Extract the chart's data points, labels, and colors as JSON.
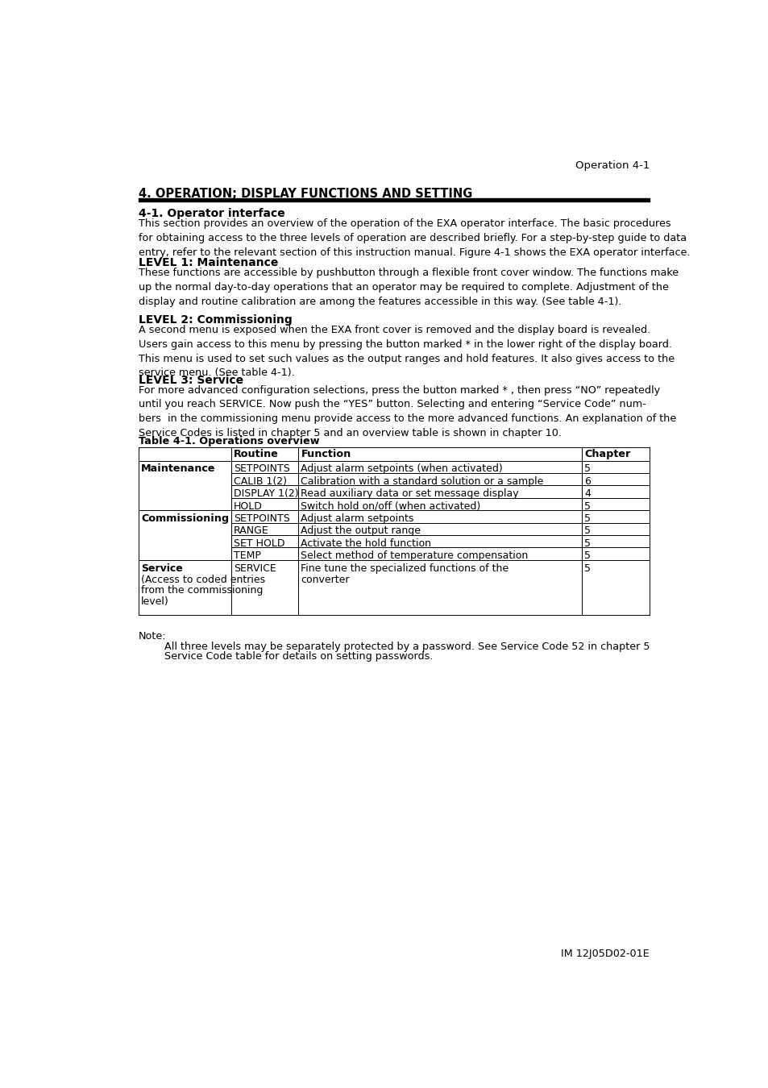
{
  "page_header": "Operation 4-1",
  "section_title": "4. OPERATION; DISPLAY FUNCTIONS AND SETTING",
  "subsection_title": "4-1. Operator interface",
  "subsection_body": "This section provides an overview of the operation of the EXA operator interface. The basic procedures\nfor obtaining access to the three levels of operation are described briefly. For a step-by-step guide to data\nentry, refer to the relevant section of this instruction manual. Figure 4-1 shows the EXA operator interface.",
  "level1_title": "LEVEL 1: Maintenance",
  "level1_body": "These functions are accessible by pushbutton through a flexible front cover window. The functions make\nup the normal day-to-day operations that an operator may be required to complete. Adjustment of the\ndisplay and routine calibration are among the features accessible in this way. (See table 4-1).",
  "level2_title": "LEVEL 2: Commissioning",
  "level2_body": "A second menu is exposed when the EXA front cover is removed and the display board is revealed.\nUsers gain access to this menu by pressing the button marked * in the lower right of the display board.\nThis menu is used to set such values as the output ranges and hold features. It also gives access to the\nservice menu. (See table 4-1).",
  "level3_title": "LEVEL 3: Service",
  "level3_body": "For more advanced configuration selections, press the button marked * , then press “NO” repeatedly\nuntil you reach SERVICE. Now push the “YES” button. Selecting and entering “Service Code” num-\nbers  in the commissioning menu provide access to the more advanced functions. An explanation of the\nService Codes is listed in chapter 5 and an overview table is shown in chapter 10.",
  "table_title": "Table 4-1. Operations overview",
  "note_label": "Note:",
  "note_line1": "All three levels may be separately protected by a password. See Service Code 52 in chapter 5",
  "note_line2": "Service Code table for details on setting passwords.",
  "footer": "IM 12J05D02-01E",
  "bg_color": "#ffffff"
}
